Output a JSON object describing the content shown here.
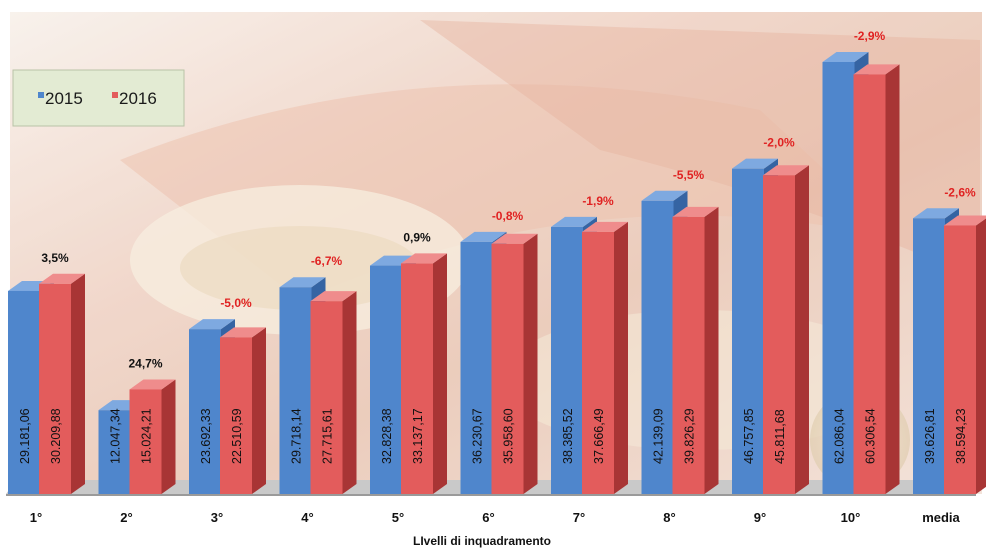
{
  "chart_data": {
    "type": "bar",
    "categories": [
      "1°",
      "2°",
      "3°",
      "4°",
      "5°",
      "6°",
      "7°",
      "8°",
      "9°",
      "10°",
      "media"
    ],
    "series": [
      {
        "name": "2015",
        "values": [
          29181.06,
          12047.34,
          23692.33,
          29718.14,
          32828.38,
          36230.67,
          38385.52,
          42139.09,
          46757.85,
          62086.04,
          39626.81
        ],
        "labels": [
          "29.181,06",
          "12.047,34",
          "23.692,33",
          "29.718,14",
          "32.828,38",
          "36.230,67",
          "38.385,52",
          "42.139,09",
          "46.757,85",
          "62.086,04",
          "39.626,81"
        ]
      },
      {
        "name": "2016",
        "values": [
          30209.88,
          15024.21,
          22510.59,
          27715.61,
          33137.17,
          35958.6,
          37666.49,
          39826.29,
          45811.68,
          60306.54,
          38594.23
        ],
        "labels": [
          "30.209,88",
          "15.024,21",
          "22.510,59",
          "27.715,61",
          "33.137,17",
          "35.958,60",
          "37.666,49",
          "39.826,29",
          "45.811,68",
          "60.306,54",
          "38.594,23"
        ]
      }
    ],
    "changes": [
      "3,5%",
      "24,7%",
      "-5,0%",
      "-6,7%",
      "0,9%",
      "-0,8%",
      "-1,9%",
      "-5,5%",
      "-2,0%",
      "-2,9%",
      "-2,6%"
    ],
    "change_positive": [
      true,
      true,
      false,
      false,
      true,
      false,
      false,
      false,
      false,
      false,
      false
    ],
    "title": "",
    "xlabel": "LIvelli di inquadramento",
    "ylabel": "",
    "ylim": [
      0,
      65000
    ],
    "legend_position": "top-left",
    "grid": false,
    "colors": {
      "s2015_front": "#4f86cc",
      "s2015_side": "#3564a3",
      "s2015_top": "#7ea9e0",
      "s2016_front": "#e35c5c",
      "s2016_side": "#a83535",
      "s2016_top": "#ef8c8c",
      "negative_change": "#e02222",
      "positive_change": "#111111"
    }
  }
}
